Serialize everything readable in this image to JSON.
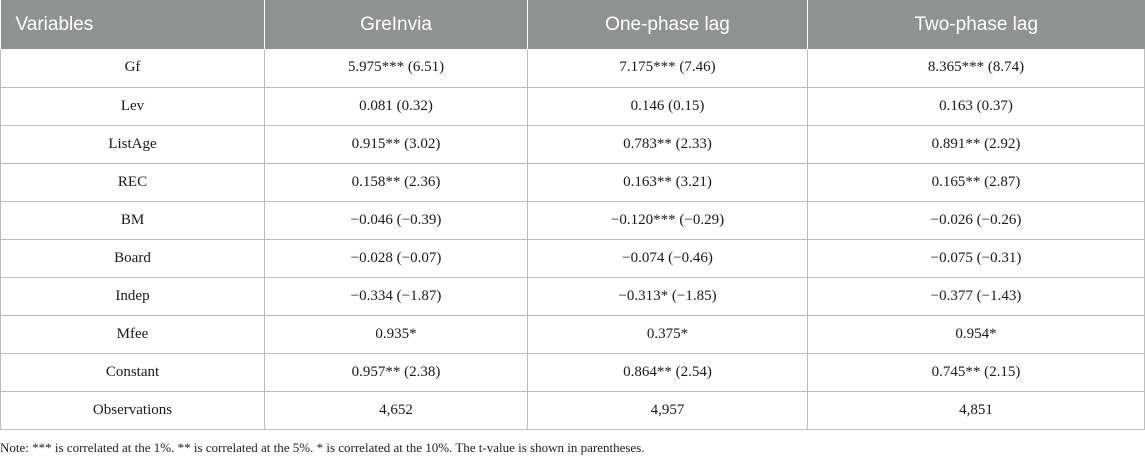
{
  "table": {
    "headers": [
      "Variables",
      "GreInvia",
      "One-phase lag",
      "Two-phase lag"
    ],
    "rows": [
      [
        "Gf",
        "5.975*** (6.51)",
        "7.175*** (7.46)",
        "8.365*** (8.74)"
      ],
      [
        "Lev",
        "0.081 (0.32)",
        "0.146 (0.15)",
        "0.163 (0.37)"
      ],
      [
        "ListAge",
        "0.915** (3.02)",
        "0.783** (2.33)",
        "0.891** (2.92)"
      ],
      [
        "REC",
        "0.158** (2.36)",
        "0.163** (3.21)",
        "0.165** (2.87)"
      ],
      [
        "BM",
        "−0.046 (−0.39)",
        "−0.120*** (−0.29)",
        "−0.026 (−0.26)"
      ],
      [
        "Board",
        "−0.028 (−0.07)",
        "−0.074 (−0.46)",
        "−0.075 (−0.31)"
      ],
      [
        "Indep",
        "−0.334 (−1.87)",
        "−0.313* (−1.85)",
        "−0.377 (−1.43)"
      ],
      [
        "Mfee",
        "0.935*",
        "0.375*",
        "0.954*"
      ],
      [
        "Constant",
        "0.957** (2.38)",
        "0.864** (2.54)",
        "0.745** (2.15)"
      ],
      [
        "Observations",
        "4,652",
        "4,957",
        "4,851"
      ]
    ]
  },
  "note": "Note: *** is correlated at the 1%. ** is correlated at the 5%. * is correlated at the 10%. The t-value is shown in parentheses.",
  "colors": {
    "header_bg": "#8f9291",
    "header_text": "#ffffff",
    "grid": "#bdbdbd"
  }
}
